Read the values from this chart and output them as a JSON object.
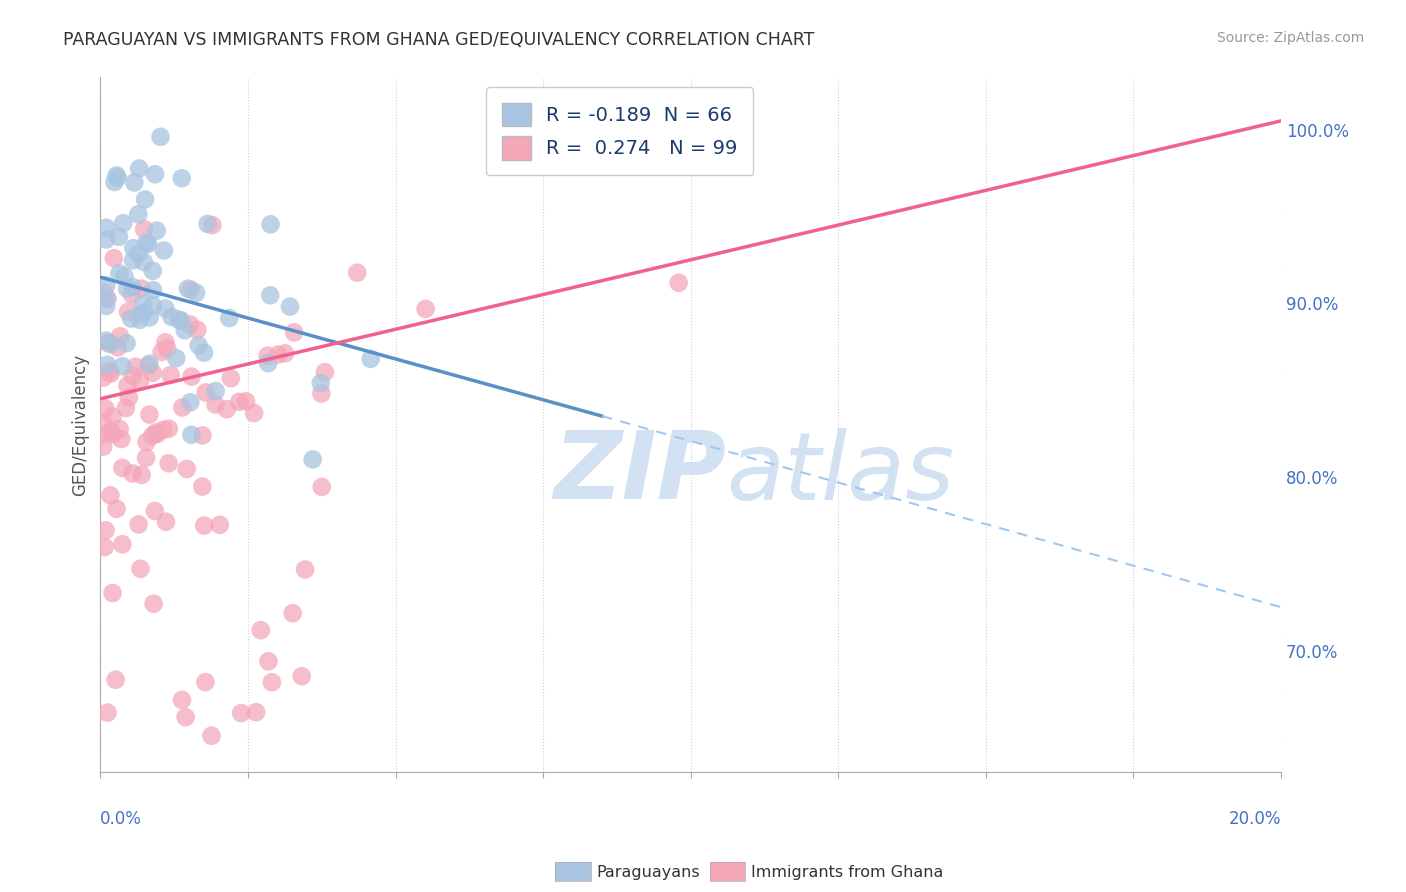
{
  "title": "PARAGUAYAN VS IMMIGRANTS FROM GHANA GED/EQUIVALENCY CORRELATION CHART",
  "source": "Source: ZipAtlas.com",
  "ylabel": "GED/Equivalency",
  "xlim": [
    0.0,
    20.0
  ],
  "ylim": [
    63.0,
    103.0
  ],
  "yticks": [
    70.0,
    80.0,
    90.0,
    100.0
  ],
  "ytick_labels": [
    "70.0%",
    "80.0%",
    "90.0%",
    "100.0%"
  ],
  "blue_R": -0.189,
  "blue_N": 66,
  "pink_R": 0.274,
  "pink_N": 99,
  "blue_color": "#a8c4e0",
  "pink_color": "#f4a7b9",
  "blue_line_color": "#5b8fc9",
  "pink_line_color": "#f06090",
  "dashed_line_color": "#a0c8f0",
  "background_color": "#ffffff",
  "grid_color": "#cccccc",
  "axis_label_color": "#4472c4",
  "watermark_color": "#ccddf0",
  "blue_line_x0": 0.0,
  "blue_line_y0": 91.5,
  "blue_line_x1": 8.5,
  "blue_line_y1": 83.5,
  "blue_dash_x0": 8.5,
  "blue_dash_y0": 83.5,
  "blue_dash_x1": 20.0,
  "blue_dash_y1": 72.5,
  "pink_line_x0": 0.0,
  "pink_line_y0": 84.5,
  "pink_line_x1": 20.0,
  "pink_line_y1": 100.5
}
